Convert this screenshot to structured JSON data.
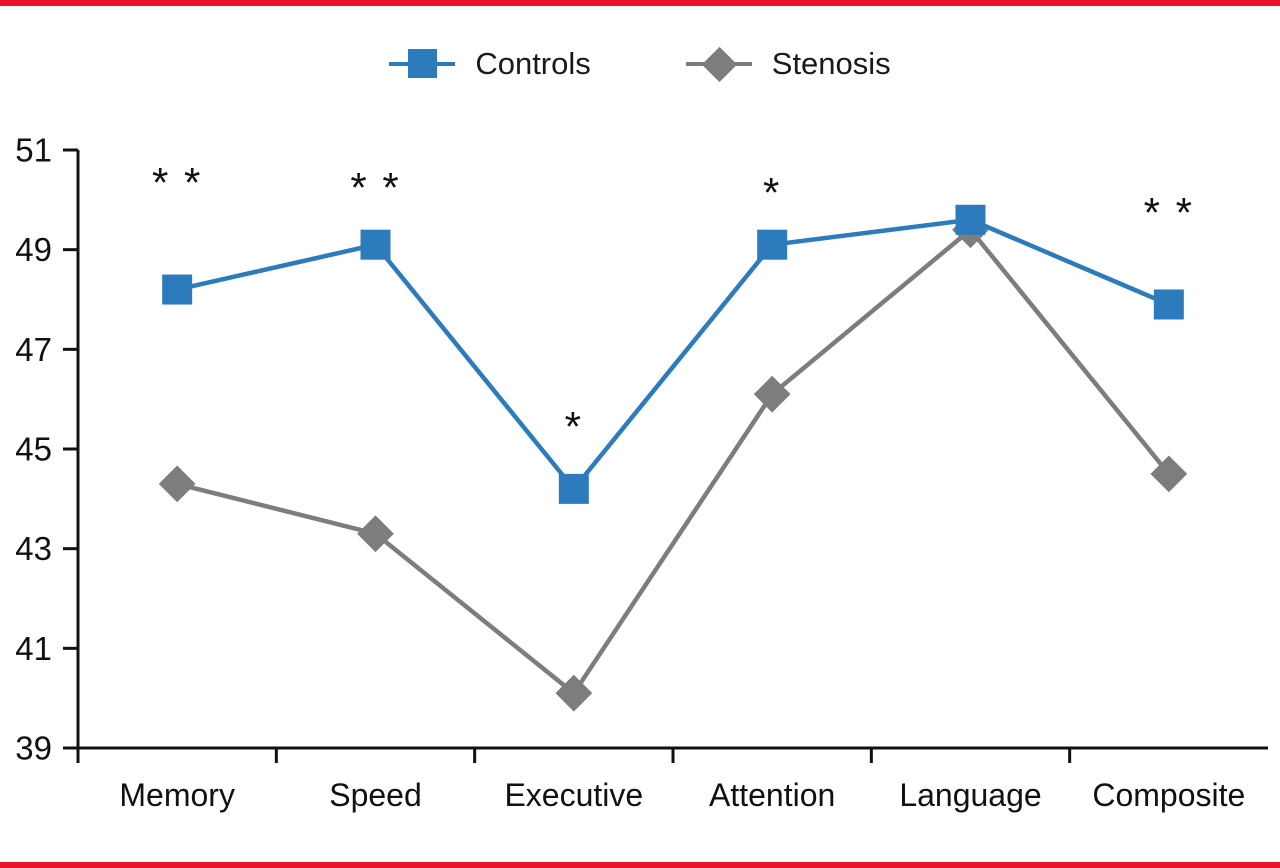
{
  "figure": {
    "accent_color": "#e8132b",
    "background_color": "#ffffff",
    "axis_color": "#111111"
  },
  "chart_data": {
    "type": "line",
    "title": "",
    "xlabel": "",
    "ylabel": "",
    "categories": [
      "Memory",
      "Speed",
      "Executive",
      "Attention",
      "Language",
      "Composite"
    ],
    "series": [
      {
        "name": "Controls",
        "marker": "square",
        "color": "#2b7bbd",
        "values": [
          48.2,
          49.1,
          44.2,
          49.1,
          49.6,
          47.9
        ]
      },
      {
        "name": "Stenosis",
        "marker": "diamond",
        "color": "#7d7d7d",
        "values": [
          44.3,
          43.3,
          40.1,
          46.1,
          49.4,
          44.5
        ]
      }
    ],
    "annotations": [
      {
        "category": "Memory",
        "text": "* *",
        "y": 50.3
      },
      {
        "category": "Speed",
        "text": "* *",
        "y": 50.2
      },
      {
        "category": "Executive",
        "text": "*",
        "y": 45.4
      },
      {
        "category": "Attention",
        "text": "*",
        "y": 50.1
      },
      {
        "category": "Composite",
        "text": "* *",
        "y": 49.7
      }
    ],
    "ylim": [
      39,
      51
    ],
    "yticks": [
      39,
      41,
      43,
      45,
      47,
      49,
      51
    ],
    "grid": false,
    "legend_position": "top"
  }
}
